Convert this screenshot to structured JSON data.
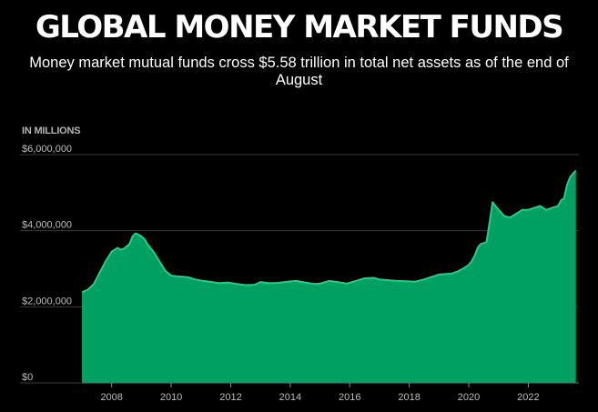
{
  "header": {
    "title": "GLOBAL MONEY MARKET FUNDS",
    "subtitle": "Money market mutual funds cross $5.58 trillion in total net assets as of the end of August"
  },
  "chart_data": {
    "type": "area",
    "title": "GLOBAL MONEY MARKET FUNDS",
    "subtitle": "Money market mutual funds cross $5.58 trillion in total net assets as of the end of August",
    "unit_label": "IN MILLIONS",
    "xlabel": "",
    "ylabel": "",
    "xlim": [
      2007.0,
      2023.7
    ],
    "ylim": [
      0,
      6000000
    ],
    "y_ticks": [
      0,
      2000000,
      4000000,
      6000000
    ],
    "y_tick_labels": [
      "$0",
      "$2,000,000",
      "$4,000,000",
      "$6,000,000"
    ],
    "x_ticks": [
      2008,
      2010,
      2012,
      2014,
      2016,
      2018,
      2020,
      2022
    ],
    "x_tick_labels": [
      "2008",
      "2010",
      "2012",
      "2014",
      "2016",
      "2018",
      "2020",
      "2022"
    ],
    "grid": "horizontal",
    "colors": {
      "fill": "#00a063",
      "line": "#1ed088",
      "grid": "#3a3a3a",
      "background": "#000000"
    },
    "series": [
      {
        "x": [
          2007.0,
          2007.2,
          2007.4,
          2007.6,
          2007.8,
          2008.0,
          2008.1,
          2008.2,
          2008.3,
          2008.4,
          2008.6,
          2008.7,
          2008.8,
          2008.9,
          2009.0,
          2009.1,
          2009.2,
          2009.4,
          2009.6,
          2009.8,
          2010.0,
          2010.2,
          2010.4,
          2010.6,
          2010.8,
          2011.0,
          2011.3,
          2011.6,
          2011.9,
          2012.2,
          2012.5,
          2012.8,
          2013.0,
          2013.3,
          2013.6,
          2013.9,
          2014.2,
          2014.5,
          2014.8,
          2015.0,
          2015.3,
          2015.6,
          2015.9,
          2016.2,
          2016.5,
          2016.8,
          2017.0,
          2017.3,
          2017.6,
          2017.9,
          2018.2,
          2018.5,
          2018.8,
          2019.0,
          2019.2,
          2019.4,
          2019.6,
          2019.8,
          2020.0,
          2020.1,
          2020.2,
          2020.3,
          2020.4,
          2020.6,
          2020.8,
          2021.0,
          2021.2,
          2021.4,
          2021.6,
          2021.8,
          2022.0,
          2022.2,
          2022.4,
          2022.6,
          2022.8,
          2023.0,
          2023.1,
          2023.2,
          2023.3,
          2023.4,
          2023.5,
          2023.6
        ],
        "values": [
          2380000,
          2450000,
          2600000,
          2900000,
          3200000,
          3450000,
          3500000,
          3550000,
          3500000,
          3520000,
          3650000,
          3850000,
          3930000,
          3900000,
          3850000,
          3780000,
          3650000,
          3450000,
          3200000,
          2950000,
          2820000,
          2800000,
          2790000,
          2770000,
          2720000,
          2690000,
          2660000,
          2620000,
          2640000,
          2600000,
          2570000,
          2580000,
          2650000,
          2620000,
          2630000,
          2660000,
          2680000,
          2640000,
          2600000,
          2610000,
          2680000,
          2650000,
          2610000,
          2680000,
          2750000,
          2760000,
          2720000,
          2700000,
          2680000,
          2670000,
          2660000,
          2720000,
          2800000,
          2850000,
          2860000,
          2870000,
          2920000,
          3000000,
          3100000,
          3200000,
          3350000,
          3550000,
          3650000,
          3700000,
          4750000,
          4550000,
          4380000,
          4350000,
          4450000,
          4550000,
          4550000,
          4600000,
          4650000,
          4550000,
          4600000,
          4650000,
          4800000,
          4850000,
          5200000,
          5400000,
          5500000,
          5580000
        ]
      }
    ]
  }
}
